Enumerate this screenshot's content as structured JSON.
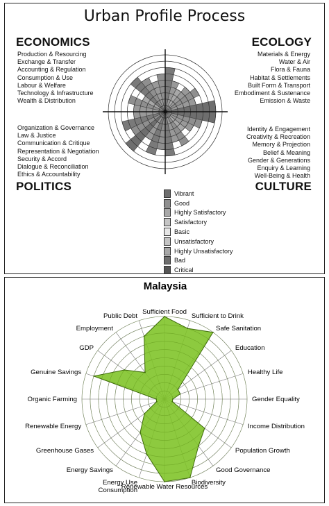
{
  "profile": {
    "title": "Urban Profile Process",
    "headings": {
      "economics": "ECONOMICS",
      "ecology": "ECOLOGY",
      "politics": "POLITICS",
      "culture": "CULTURE"
    },
    "economics_items": [
      "Production & Resourcing",
      "Exchange & Transfer",
      "Accounting & Regulation",
      "Consumption & Use",
      "Labour & Welfare",
      "Technology & Infrastructure",
      "Wealth & Distribution"
    ],
    "ecology_items": [
      "Materials & Energy",
      "Water & Air",
      "Flora & Fauna",
      "Habitat & Settlements",
      "Built Form & Transport",
      "Embodiment & Sustenance",
      "Emission & Waste"
    ],
    "politics_items": [
      "Organization & Governance",
      "Law & Justice",
      "Communication & Critique",
      "Representation & Negotiation",
      "Security & Accord",
      "Dialogue & Reconciliation",
      "Ethics & Accountability"
    ],
    "culture_items": [
      "Identity & Engagement",
      "Creativity & Recreation",
      "Memory & Projection",
      "Belief & Meaning",
      "Gender & Generations",
      "Enquiry & Learning",
      "Well-Being & Health"
    ],
    "legend": [
      {
        "label": "Vibrant",
        "color": "#6e6e6e"
      },
      {
        "label": "Good",
        "color": "#8f8f8f"
      },
      {
        "label": "Highly Satisfactory",
        "color": "#a8a8a8"
      },
      {
        "label": "Satisfactory",
        "color": "#c4c4c4"
      },
      {
        "label": "Basic",
        "color": "#e6e6e6"
      },
      {
        "label": "Unsatisfactory",
        "color": "#c4c4c4"
      },
      {
        "label": "Highly Unsatisfactory",
        "color": "#a8a8a8"
      },
      {
        "label": "Bad",
        "color": "#6e6e6e"
      },
      {
        "label": "Critical",
        "color": "#555555"
      }
    ],
    "circle_segments": {
      "ecology": [
        7,
        5,
        4,
        5,
        6,
        5,
        8
      ],
      "culture": [
        8,
        6,
        5,
        4,
        6,
        5,
        7
      ],
      "politics": [
        6,
        7,
        5,
        8,
        6,
        7,
        5
      ],
      "economics": [
        5,
        6,
        4,
        7,
        6,
        5,
        6
      ]
    }
  },
  "malaysia": {
    "title": "Malaysia",
    "fill_color": "#7dc324",
    "chart_data": {
      "type": "radar",
      "title": "Malaysia",
      "max": 10,
      "categories": [
        "Sufficient Food",
        "Sufficient to Drink",
        "Safe Sanitation",
        "Education",
        "Healthy Life",
        "Gender Equality",
        "Income Distribution",
        "Population Growth",
        "Good Governance",
        "Biodiversity",
        "Renewable Water Resources",
        "Energy Use\nConsumption",
        "Energy Savings",
        "Greenhouse Gases",
        "Renewable Energy",
        "Organic Farming",
        "Genuine Savings",
        "GDP",
        "Employment",
        "Public Debt"
      ],
      "values": [
        10,
        9,
        10,
        2,
        2,
        1,
        1,
        6,
        7,
        10,
        10,
        7,
        5,
        3,
        1,
        1,
        9,
        6,
        4,
        8
      ]
    }
  }
}
